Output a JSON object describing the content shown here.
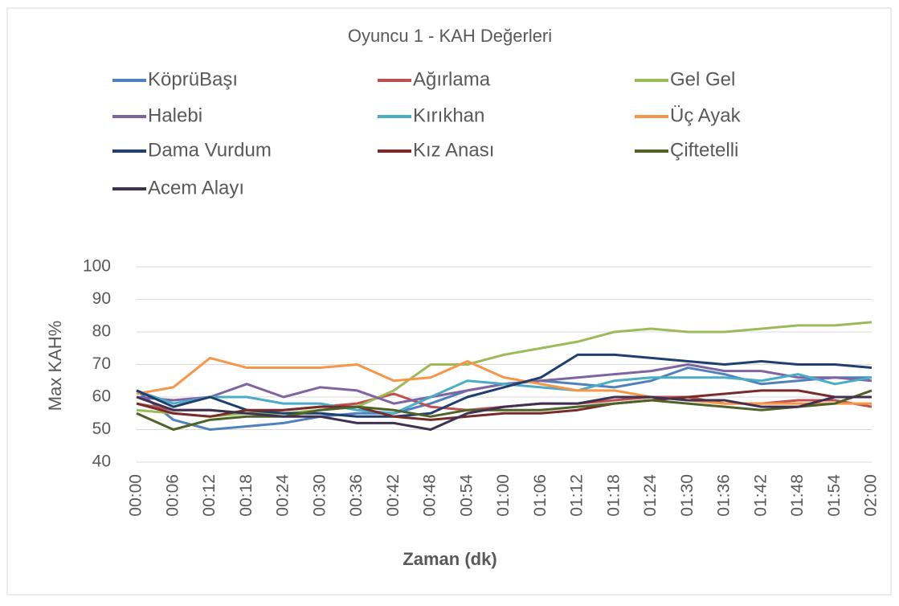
{
  "chart_data": {
    "type": "line",
    "title": "Oyuncu 1 - KAH Değerleri",
    "xlabel": "Zaman (dk)",
    "ylabel": "Max KAH%",
    "categories": [
      "00:00",
      "00:06",
      "00:12",
      "00:18",
      "00:24",
      "00:30",
      "00:36",
      "00:42",
      "00:48",
      "00:54",
      "01:00",
      "01:06",
      "01:12",
      "01:18",
      "01:24",
      "01:30",
      "01:36",
      "01:42",
      "01:48",
      "01:54",
      "02:00"
    ],
    "ylim": [
      40,
      100
    ],
    "yticks": [
      40,
      50,
      60,
      70,
      80,
      90,
      100
    ],
    "grid": true,
    "legend": "top",
    "series": [
      {
        "name": "KöprüBaşı",
        "color": "#4f81bd",
        "values": [
          62,
          53,
          50,
          51,
          52,
          54,
          55,
          55,
          58,
          62,
          64,
          65,
          64,
          63,
          65,
          69,
          67,
          64,
          65,
          66,
          66
        ]
      },
      {
        "name": "Ağırlama",
        "color": "#c0504d",
        "values": [
          58,
          56,
          56,
          55,
          56,
          57,
          58,
          61,
          57,
          56,
          57,
          58,
          58,
          59,
          60,
          60,
          58,
          58,
          59,
          59,
          57
        ]
      },
      {
        "name": "Gel Gel",
        "color": "#9bbb59",
        "values": [
          56,
          55,
          54,
          55,
          55,
          56,
          57,
          62,
          70,
          70,
          73,
          75,
          77,
          80,
          81,
          80,
          80,
          81,
          82,
          82,
          83
        ]
      },
      {
        "name": "Halebi",
        "color": "#8064a2",
        "values": [
          60,
          59,
          60,
          64,
          60,
          63,
          62,
          58,
          60,
          62,
          64,
          65,
          66,
          67,
          68,
          70,
          68,
          68,
          66,
          66,
          65
        ]
      },
      {
        "name": "Kırıkhan",
        "color": "#4bacc6",
        "values": [
          62,
          58,
          60,
          60,
          58,
          58,
          56,
          55,
          60,
          65,
          64,
          63,
          62,
          65,
          66,
          66,
          66,
          65,
          67,
          64,
          66
        ]
      },
      {
        "name": "Üç Ayak",
        "color": "#f79646",
        "values": [
          61,
          63,
          72,
          69,
          69,
          69,
          70,
          65,
          66,
          71,
          66,
          64,
          62,
          62,
          60,
          59,
          58,
          58,
          58,
          58,
          58
        ]
      },
      {
        "name": "Dama Vurdum",
        "color": "#1f3f6e",
        "values": [
          62,
          57,
          60,
          56,
          55,
          55,
          54,
          54,
          55,
          60,
          63,
          66,
          73,
          73,
          72,
          71,
          70,
          71,
          70,
          70,
          69
        ]
      },
      {
        "name": "Kız Anası",
        "color": "#772c2a",
        "values": [
          58,
          55,
          54,
          56,
          56,
          57,
          57,
          54,
          53,
          54,
          55,
          55,
          56,
          58,
          59,
          60,
          61,
          62,
          62,
          60,
          60
        ]
      },
      {
        "name": "Çiftetelli",
        "color": "#4f6228",
        "values": [
          55,
          50,
          53,
          54,
          54,
          56,
          57,
          56,
          54,
          56,
          56,
          56,
          57,
          58,
          59,
          58,
          57,
          56,
          57,
          58,
          62
        ]
      },
      {
        "name": "Acem Alayı",
        "color": "#3f3151",
        "values": [
          60,
          56,
          56,
          55,
          54,
          54,
          52,
          52,
          50,
          55,
          57,
          58,
          58,
          60,
          60,
          59,
          59,
          57,
          57,
          60,
          60
        ]
      }
    ]
  }
}
